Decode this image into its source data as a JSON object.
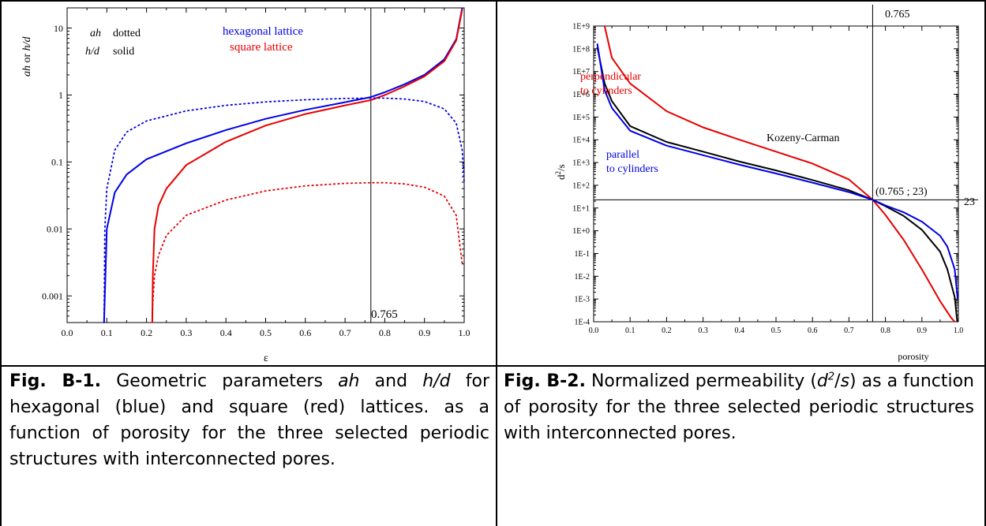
{
  "fig1": {
    "caption": {
      "label": "Fig. B-1.",
      "pre": " Geometric parameters ",
      "ah": "ah",
      "and": " and ",
      "hd": "h/d",
      "post": " for hexagonal (blue) and square (red) lattices. as a function of porosity for the three selected periodic structures with interconnected pores."
    },
    "legend_ah": "ah",
    "legend_ah_style": "dotted",
    "legend_hd": "h/d",
    "legend_hd_style": "solid",
    "ylabel_ah": "ah",
    "ylabel_or": " or ",
    "ylabel_hd": "h/d",
    "marker_label": "0.765"
  },
  "fig2": {
    "caption": {
      "label": "Fig. B-2.",
      "pre": " Normalized permeability (",
      "sym": "d",
      "sup": "2",
      "slash": "/",
      "s": "s",
      "post": ") as a function of porosity for the three selected periodic structures with interconnected pores."
    },
    "ylabel_main": "d",
    "ylabel_sup": "2",
    "ylabel_tail": "/s",
    "top_marker_label": "0.765",
    "point_label": "(0.765 ; 23)",
    "right_marker_label": "23",
    "label_perp_1": "perpendicular",
    "label_perp_2": "to cylinders",
    "label_parallel_1": "parallel",
    "label_parallel_2": "to cylinders",
    "label_kc": "Kozeny-Carman"
  },
  "colors": {
    "blue": "#0000e6",
    "red": "#e60000",
    "black": "#000000"
  },
  "chart_data": [
    {
      "type": "line",
      "xlabel": "ε",
      "ylabel": "ah or h/d",
      "yscale": "log",
      "xlim": [
        0.0,
        1.0
      ],
      "ylim": [
        0.0004,
        20
      ],
      "x_ticks": [
        "0.0",
        "0.1",
        "0.2",
        "0.3",
        "0.4",
        "0.5",
        "0.6",
        "0.7",
        "0.8",
        "0.9",
        "1.0"
      ],
      "y_ticks": [
        "0.001",
        "0.01",
        "0.1",
        "1",
        "10"
      ],
      "legend": [
        "hexagonal lattice",
        "square lattice"
      ],
      "vline_x": 0.765,
      "series": [
        {
          "name": "hexagonal lattice",
          "style": "solid",
          "color": "blue",
          "x": [
            0.0931,
            0.095,
            0.1,
            0.12,
            0.15,
            0.2,
            0.3,
            0.4,
            0.5,
            0.6,
            0.7,
            0.765,
            0.8,
            0.85,
            0.9,
            0.95,
            0.98,
            0.995
          ],
          "y": [
            0.0004,
            0.001,
            0.01,
            0.035,
            0.065,
            0.11,
            0.19,
            0.3,
            0.44,
            0.6,
            0.78,
            0.93,
            1.1,
            1.45,
            2.0,
            3.4,
            6.8,
            20
          ]
        },
        {
          "name": "square lattice",
          "style": "solid",
          "color": "red",
          "x": [
            0.2146,
            0.216,
            0.22,
            0.23,
            0.25,
            0.3,
            0.4,
            0.5,
            0.6,
            0.7,
            0.765,
            0.8,
            0.85,
            0.9,
            0.95,
            0.98,
            0.995
          ],
          "y": [
            0.0004,
            0.002,
            0.01,
            0.022,
            0.04,
            0.09,
            0.2,
            0.35,
            0.52,
            0.7,
            0.84,
            1.0,
            1.35,
            1.9,
            3.2,
            6.5,
            19
          ]
        },
        {
          "name": "hexagonal lattice",
          "style": "dotted",
          "color": "blue",
          "x": [
            0.0931,
            0.095,
            0.1,
            0.12,
            0.15,
            0.2,
            0.3,
            0.4,
            0.5,
            0.6,
            0.7,
            0.765,
            0.8,
            0.85,
            0.9,
            0.95,
            0.98,
            0.995,
            1.0
          ],
          "y": [
            0.0004,
            0.01,
            0.04,
            0.15,
            0.28,
            0.41,
            0.58,
            0.7,
            0.79,
            0.85,
            0.89,
            0.9,
            0.9,
            0.87,
            0.8,
            0.62,
            0.38,
            0.15,
            0.05
          ]
        },
        {
          "name": "square lattice",
          "style": "dotted",
          "color": "red",
          "x": [
            0.2146,
            0.216,
            0.22,
            0.23,
            0.25,
            0.3,
            0.4,
            0.5,
            0.6,
            0.7,
            0.765,
            0.8,
            0.85,
            0.9,
            0.95,
            0.98,
            0.995
          ],
          "y": [
            0.0004,
            0.0008,
            0.002,
            0.004,
            0.008,
            0.016,
            0.027,
            0.037,
            0.044,
            0.048,
            0.049,
            0.049,
            0.047,
            0.042,
            0.031,
            0.016,
            0.003
          ]
        }
      ]
    },
    {
      "type": "line",
      "xlabel": "porosity",
      "ylabel": "d²/s",
      "yscale": "log",
      "xlim": [
        0.0,
        1.0
      ],
      "ylim": [
        0.0001,
        1000000000
      ],
      "x_ticks": [
        "0.0",
        "0.1",
        "0.2",
        "0.3",
        "0.4",
        "0.5",
        "0.6",
        "0.7",
        "0.8",
        "0.9",
        "1.0"
      ],
      "y_ticks": [
        "1E-4",
        "1E-3",
        "1E-2",
        "1E-1",
        "1E+0",
        "1E+1",
        "1E+2",
        "1E+3",
        "1E+4",
        "1E+5",
        "1E+6",
        "1E+7",
        "1E+8",
        "1E+9"
      ],
      "vline_x": 0.765,
      "hline_y": 23,
      "series": [
        {
          "name": "perpendicular to cylinders",
          "color": "red",
          "x": [
            0.03,
            0.05,
            0.1,
            0.2,
            0.3,
            0.4,
            0.5,
            0.6,
            0.7,
            0.765,
            0.8,
            0.85,
            0.9,
            0.95,
            0.98,
            0.99
          ],
          "y": [
            1000000000,
            40000000,
            3000000,
            180000,
            35000,
            10000,
            3000,
            900,
            180,
            23,
            5,
            0.4,
            0.02,
            0.0008,
            0.00015,
            3e-05
          ]
        },
        {
          "name": "Kozeny-Carman",
          "color": "black",
          "x": [
            0.01,
            0.03,
            0.05,
            0.1,
            0.2,
            0.3,
            0.4,
            0.5,
            0.6,
            0.7,
            0.765,
            0.8,
            0.85,
            0.9,
            0.95,
            0.97,
            0.99,
            0.997
          ],
          "y": [
            120000000,
            3000000,
            500000,
            40000,
            8000,
            3000,
            1100,
            450,
            170,
            60,
            23,
            12,
            4.5,
            1.1,
            0.12,
            0.02,
            0.0012,
            0.0001
          ]
        },
        {
          "name": "parallel to cylinders",
          "color": "blue",
          "x": [
            0.01,
            0.03,
            0.05,
            0.1,
            0.2,
            0.3,
            0.4,
            0.5,
            0.6,
            0.7,
            0.765,
            0.8,
            0.85,
            0.9,
            0.95,
            0.97,
            0.99,
            0.998
          ],
          "y": [
            170000000,
            1500000,
            250000,
            25000,
            5500,
            2100,
            800,
            330,
            130,
            50,
            23,
            13,
            6.5,
            2.5,
            0.6,
            0.2,
            0.02,
            0.001
          ]
        }
      ]
    }
  ]
}
